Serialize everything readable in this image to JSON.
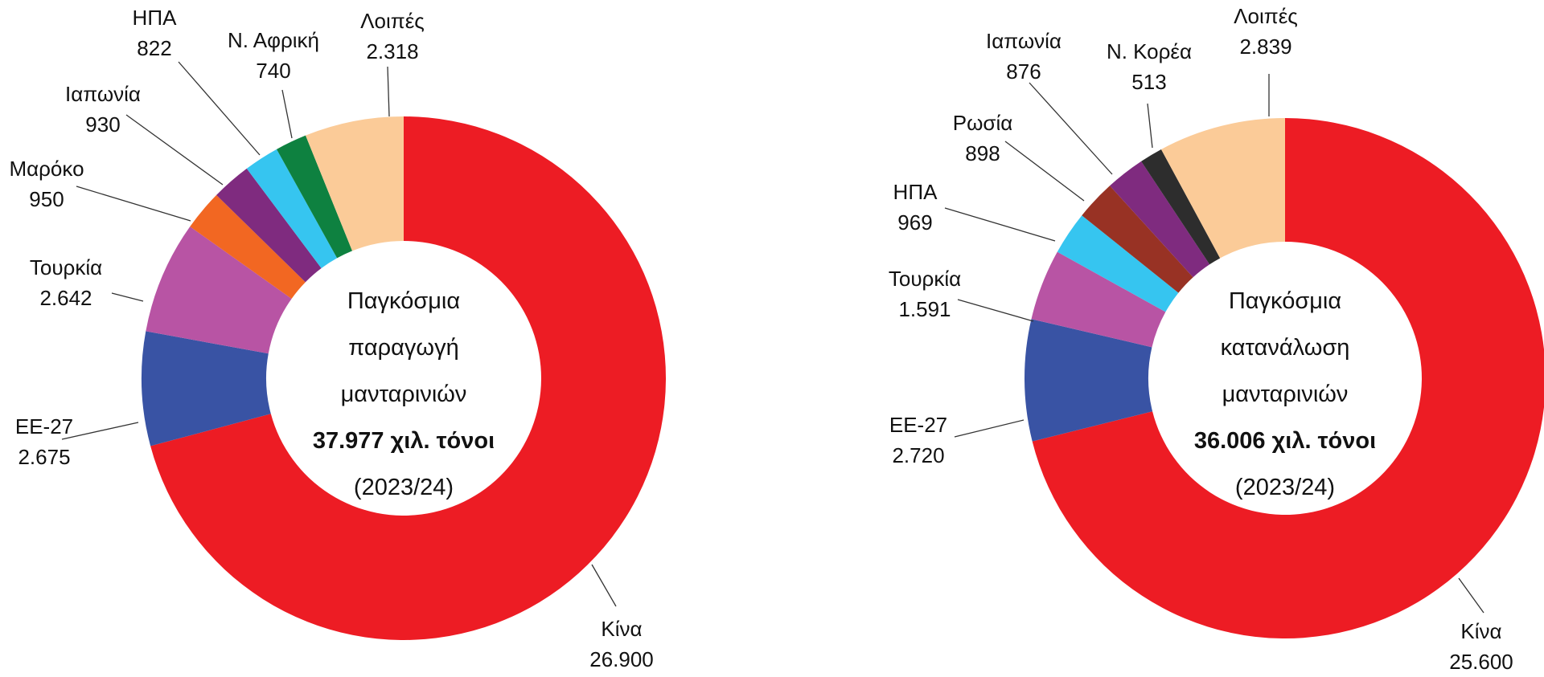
{
  "chart_data": [
    {
      "type": "pie",
      "variant": "donut",
      "title_lines": [
        "Παγκόσμια",
        "παραγωγή",
        "μανταρινιών"
      ],
      "total_label": "37.977 χιλ. τόνοι",
      "period": "(2023/24)",
      "unit": "χιλ. τόνοι",
      "slices": [
        {
          "label": "Κίνα",
          "value": 26900,
          "value_label": "26.900",
          "color": "#ED1C24"
        },
        {
          "label": "ΕΕ-27",
          "value": 2675,
          "value_label": "2.675",
          "color": "#3953A4"
        },
        {
          "label": "Τουρκία",
          "value": 2642,
          "value_label": "2.642",
          "color": "#B854A4"
        },
        {
          "label": "Μαρόκο",
          "value": 950,
          "value_label": "950",
          "color": "#F26722"
        },
        {
          "label": "Ιαπωνία",
          "value": 930,
          "value_label": "930",
          "color": "#7F2B7F"
        },
        {
          "label": "ΗΠΑ",
          "value": 822,
          "value_label": "822",
          "color": "#36C5F0"
        },
        {
          "label": "Ν. Αφρική",
          "value": 740,
          "value_label": "740",
          "color": "#0E8140"
        },
        {
          "label": "Λοιπές",
          "value": 2318,
          "value_label": "2.318",
          "color": "#FBCB98"
        }
      ]
    },
    {
      "type": "pie",
      "variant": "donut",
      "title_lines": [
        "Παγκόσμια",
        "κατανάλωση",
        "μανταρινιών"
      ],
      "total_label": "36.006 χιλ. τόνοι",
      "period": "(2023/24)",
      "unit": "χιλ. τόνοι",
      "slices": [
        {
          "label": "Κίνα",
          "value": 25600,
          "value_label": "25.600",
          "color": "#ED1C24"
        },
        {
          "label": "ΕΕ-27",
          "value": 2720,
          "value_label": "2.720",
          "color": "#3953A4"
        },
        {
          "label": "Τουρκία",
          "value": 1591,
          "value_label": "1.591",
          "color": "#B854A4"
        },
        {
          "label": "ΗΠΑ",
          "value": 969,
          "value_label": "969",
          "color": "#36C5F0"
        },
        {
          "label": "Ρωσία",
          "value": 898,
          "value_label": "898",
          "color": "#983224"
        },
        {
          "label": "Ιαπωνία",
          "value": 876,
          "value_label": "876",
          "color": "#7F2B7F"
        },
        {
          "label": "Ν. Κορέα",
          "value": 513,
          "value_label": "513",
          "color": "#2D2D2D"
        },
        {
          "label": "Λοιπές",
          "value": 2839,
          "value_label": "2.839",
          "color": "#FBCB98"
        }
      ]
    }
  ]
}
